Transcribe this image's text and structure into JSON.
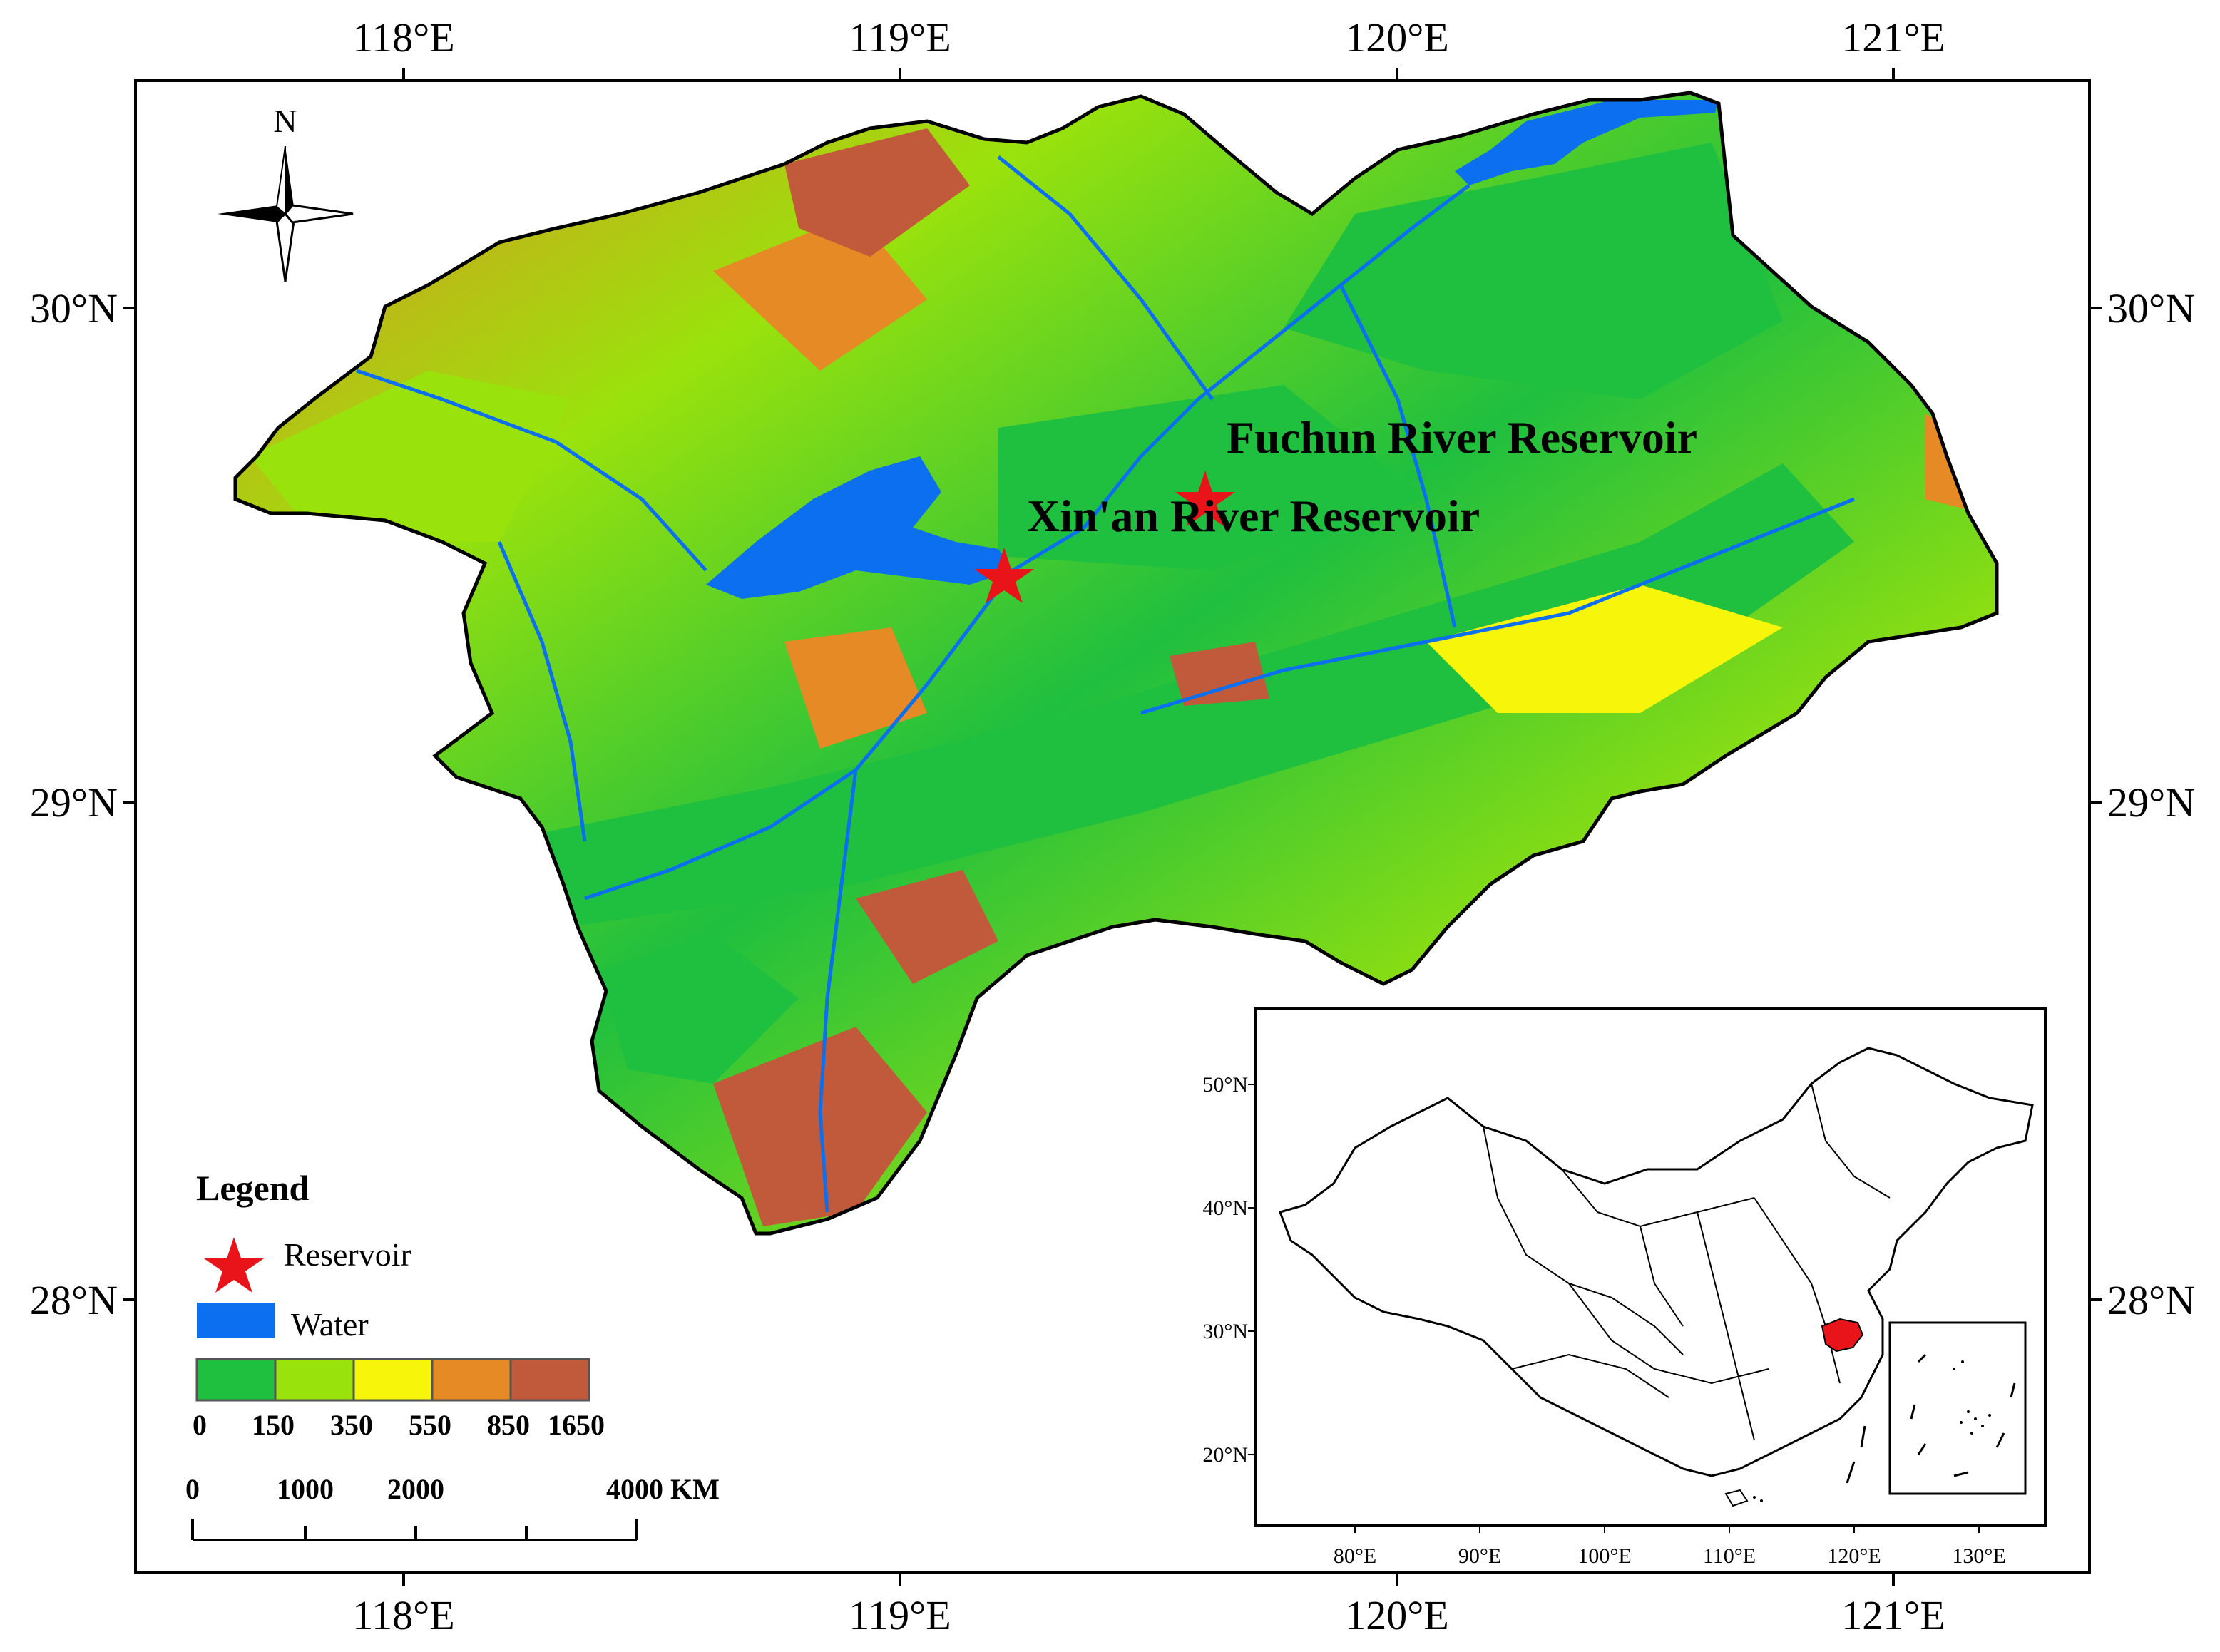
{
  "map": {
    "top_lon_ticks": [
      "118°E",
      "119°E",
      "120°E",
      "121°E"
    ],
    "bottom_lon_ticks": [
      "118°E",
      "119°E",
      "120°E",
      "121°E"
    ],
    "left_lat_ticks": [
      "30°N",
      "29°N",
      "28°N"
    ],
    "right_lat_ticks": [
      "30°N",
      "29°N",
      "28°N"
    ],
    "north_label": "N",
    "reservoirs": [
      {
        "name": "Fuchun River Reservoir"
      },
      {
        "name": "Xin'an River Reservoir"
      }
    ]
  },
  "legend": {
    "title": "Legend",
    "reservoir_label": "Reservoir",
    "water_label": "Water",
    "elevation_classes": [
      "0",
      "150",
      "350",
      "550",
      "850",
      "1650"
    ],
    "class_colors": [
      "#1fbf3f",
      "#9ae20c",
      "#f6f50a",
      "#e58a24",
      "#c05a3a"
    ],
    "water_color": "#0b6ff0",
    "reservoir_color": "#e8141a"
  },
  "scale_bar": {
    "labels": [
      "0",
      "1000",
      "2000",
      "4000 KM"
    ]
  },
  "inset": {
    "lat_ticks": [
      "50°N",
      "40°N",
      "30°N",
      "20°N"
    ],
    "lon_ticks": [
      "80°E",
      "90°E",
      "100°E",
      "110°E",
      "120°E",
      "130°E"
    ],
    "highlight_color": "#e8141a"
  }
}
